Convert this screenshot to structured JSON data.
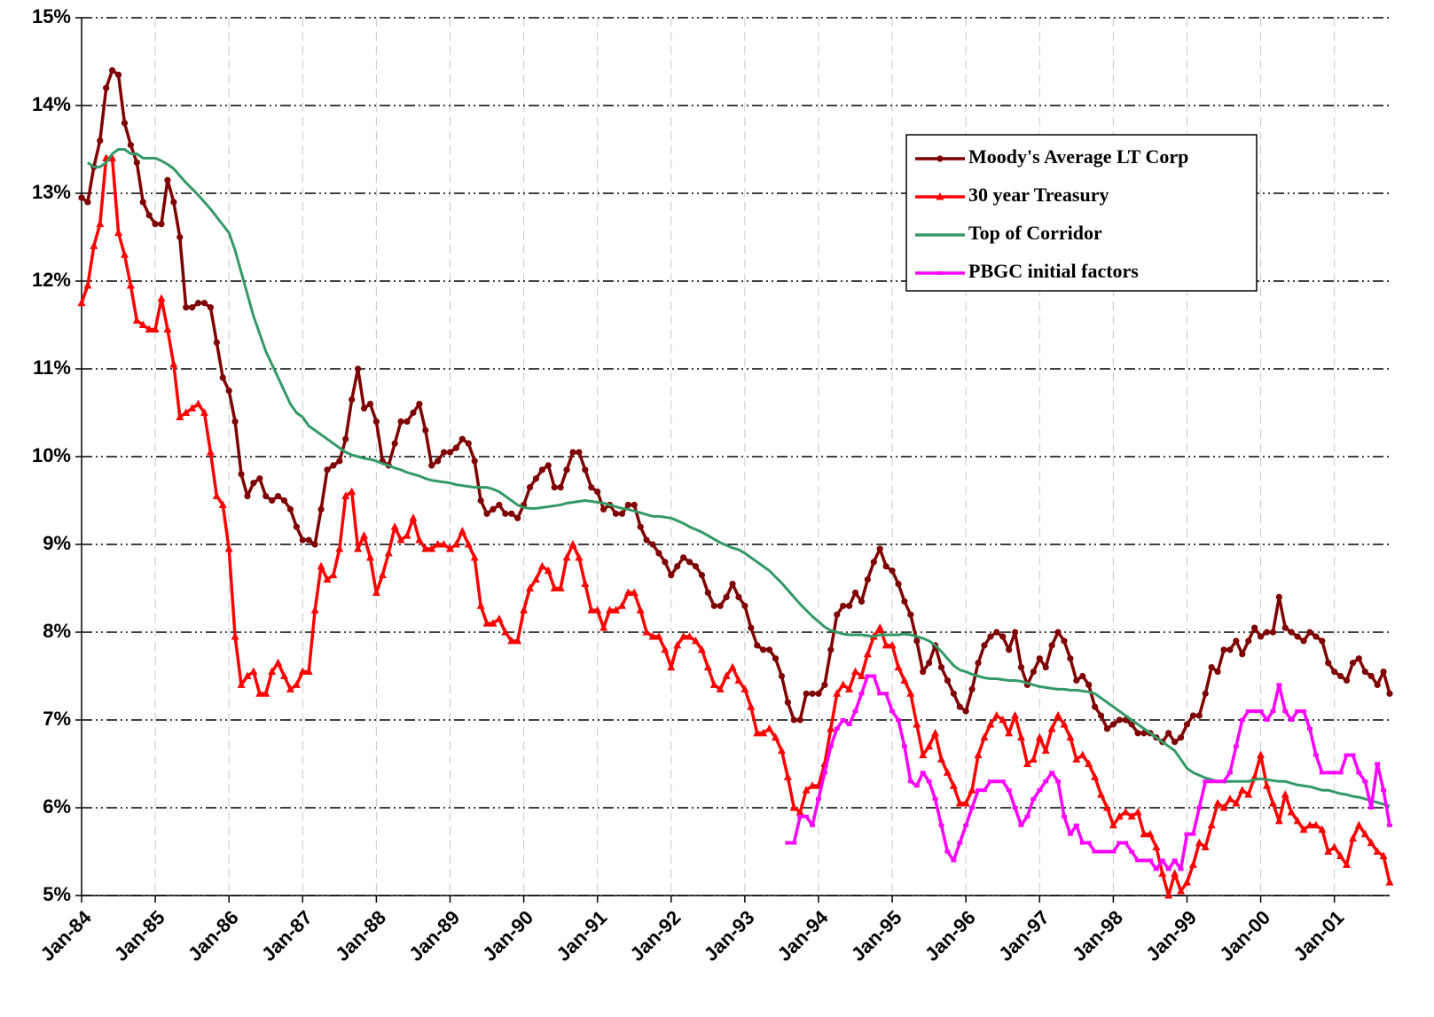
{
  "chart_data": {
    "type": "line",
    "categories": [
      "Jan-84",
      null,
      null,
      null,
      null,
      null,
      null,
      null,
      null,
      null,
      null,
      null,
      "Jan-85",
      null,
      null,
      null,
      null,
      null,
      null,
      null,
      null,
      null,
      null,
      null,
      "Jan-86",
      null,
      null,
      null,
      null,
      null,
      null,
      null,
      null,
      null,
      null,
      null,
      "Jan-87",
      null,
      null,
      null,
      null,
      null,
      null,
      null,
      null,
      null,
      null,
      null,
      "Jan-88",
      null,
      null,
      null,
      null,
      null,
      null,
      null,
      null,
      null,
      null,
      null,
      "Jan-89",
      null,
      null,
      null,
      null,
      null,
      null,
      null,
      null,
      null,
      null,
      null,
      "Jan-90",
      null,
      null,
      null,
      null,
      null,
      null,
      null,
      null,
      null,
      null,
      null,
      "Jan-91",
      null,
      null,
      null,
      null,
      null,
      null,
      null,
      null,
      null,
      null,
      null,
      "Jan-92",
      null,
      null,
      null,
      null,
      null,
      null,
      null,
      null,
      null,
      null,
      null,
      "Jan-93",
      null,
      null,
      null,
      null,
      null,
      null,
      null,
      null,
      null,
      null,
      null,
      "Jan-94",
      null,
      null,
      null,
      null,
      null,
      null,
      null,
      null,
      null,
      null,
      null,
      "Jan-95",
      null,
      null,
      null,
      null,
      null,
      null,
      null,
      null,
      null,
      null,
      null,
      "Jan-96",
      null,
      null,
      null,
      null,
      null,
      null,
      null,
      null,
      null,
      null,
      null,
      "Jan-97",
      null,
      null,
      null,
      null,
      null,
      null,
      null,
      null,
      null,
      null,
      null,
      "Jan-98",
      null,
      null,
      null,
      null,
      null,
      null,
      null,
      null,
      null,
      null,
      null,
      "Jan-99",
      null,
      null,
      null,
      null,
      null,
      null,
      null,
      null,
      null,
      null,
      null,
      "Jan-00",
      null,
      null,
      null,
      null,
      null,
      null,
      null,
      null,
      null,
      null,
      null,
      "Jan-01",
      null,
      null,
      null,
      null,
      null,
      null,
      null,
      null,
      null
    ],
    "series": [
      {
        "name": "Moody's Average LT Corp",
        "color": "#7f0000",
        "marker": "circle",
        "values": [
          12.95,
          12.9,
          13.3,
          13.6,
          14.2,
          14.4,
          14.35,
          13.8,
          13.55,
          13.35,
          12.9,
          12.75,
          12.65,
          12.65,
          13.15,
          12.9,
          12.5,
          11.7,
          11.7,
          11.75,
          11.75,
          11.7,
          11.3,
          10.9,
          10.75,
          10.4,
          9.8,
          9.55,
          9.7,
          9.75,
          9.55,
          9.5,
          9.55,
          9.5,
          9.4,
          9.2,
          9.05,
          9.05,
          9.0,
          9.4,
          9.85,
          9.9,
          9.95,
          10.2,
          10.65,
          11.0,
          10.55,
          10.6,
          10.4,
          9.95,
          9.9,
          10.15,
          10.4,
          10.4,
          10.5,
          10.6,
          10.3,
          9.9,
          9.95,
          10.05,
          10.05,
          10.1,
          10.2,
          10.15,
          9.95,
          9.5,
          9.35,
          9.4,
          9.45,
          9.35,
          9.35,
          9.3,
          9.45,
          9.65,
          9.75,
          9.85,
          9.9,
          9.65,
          9.65,
          9.85,
          10.05,
          10.05,
          9.85,
          9.65,
          9.6,
          9.4,
          9.45,
          9.35,
          9.35,
          9.45,
          9.45,
          9.2,
          9.05,
          9.0,
          8.9,
          8.8,
          8.65,
          8.75,
          8.85,
          8.8,
          8.75,
          8.65,
          8.45,
          8.3,
          8.3,
          8.4,
          8.55,
          8.4,
          8.3,
          8.05,
          7.85,
          7.8,
          7.8,
          7.7,
          7.5,
          7.2,
          7.0,
          7.0,
          7.3,
          7.3,
          7.3,
          7.4,
          7.8,
          8.2,
          8.3,
          8.3,
          8.45,
          8.35,
          8.6,
          8.8,
          8.95,
          8.75,
          8.7,
          8.55,
          8.35,
          8.2,
          7.9,
          7.55,
          7.65,
          7.85,
          7.6,
          7.45,
          7.3,
          7.15,
          7.1,
          7.35,
          7.65,
          7.85,
          7.95,
          8.0,
          7.95,
          7.8,
          8.0,
          7.6,
          7.4,
          7.55,
          7.7,
          7.6,
          7.85,
          8.0,
          7.9,
          7.7,
          7.45,
          7.5,
          7.4,
          7.15,
          7.05,
          6.9,
          6.95,
          7.0,
          7.0,
          6.95,
          6.85,
          6.85,
          6.85,
          6.8,
          6.75,
          6.85,
          6.75,
          6.8,
          6.95,
          7.05,
          7.05,
          7.3,
          7.6,
          7.55,
          7.8,
          7.8,
          7.9,
          7.75,
          7.9,
          8.05,
          7.95,
          8.0,
          8.0,
          8.4,
          8.05,
          8.0,
          7.95,
          7.9,
          8.0,
          7.95,
          7.9,
          7.65,
          7.55,
          7.5,
          7.45,
          7.65,
          7.7,
          7.55,
          7.5,
          7.4,
          7.55,
          7.3
        ]
      },
      {
        "name": "30 year Treasury",
        "color": "#ff0000",
        "marker": "triangle",
        "values": [
          11.75,
          11.95,
          12.4,
          12.65,
          13.4,
          13.4,
          12.55,
          12.3,
          11.95,
          11.55,
          11.5,
          11.45,
          11.45,
          11.8,
          11.45,
          11.05,
          10.45,
          10.5,
          10.55,
          10.6,
          10.5,
          10.05,
          9.55,
          9.45,
          8.95,
          7.95,
          7.4,
          7.5,
          7.55,
          7.3,
          7.3,
          7.55,
          7.65,
          7.5,
          7.35,
          7.4,
          7.55,
          7.55,
          8.25,
          8.75,
          8.6,
          8.65,
          8.95,
          9.55,
          9.6,
          8.95,
          9.1,
          8.85,
          8.45,
          8.65,
          8.9,
          9.2,
          9.05,
          9.1,
          9.3,
          9.05,
          8.95,
          8.95,
          9.0,
          9.0,
          8.95,
          9.0,
          9.15,
          9.0,
          8.85,
          8.3,
          8.1,
          8.1,
          8.15,
          8.0,
          7.9,
          7.9,
          8.25,
          8.5,
          8.6,
          8.75,
          8.7,
          8.5,
          8.5,
          8.85,
          9.0,
          8.85,
          8.55,
          8.25,
          8.25,
          8.05,
          8.25,
          8.25,
          8.3,
          8.45,
          8.45,
          8.25,
          8.0,
          7.95,
          7.95,
          7.8,
          7.6,
          7.85,
          7.95,
          7.95,
          7.9,
          7.8,
          7.6,
          7.4,
          7.35,
          7.5,
          7.6,
          7.45,
          7.35,
          7.15,
          6.85,
          6.85,
          6.9,
          6.8,
          6.65,
          6.35,
          6.0,
          5.95,
          6.2,
          6.25,
          6.25,
          6.5,
          6.9,
          7.3,
          7.4,
          7.35,
          7.55,
          7.5,
          7.75,
          7.95,
          8.05,
          7.85,
          7.85,
          7.6,
          7.45,
          7.3,
          6.95,
          6.6,
          6.7,
          6.85,
          6.55,
          6.4,
          6.25,
          6.05,
          6.05,
          6.2,
          6.6,
          6.8,
          6.95,
          7.05,
          7.0,
          6.85,
          7.05,
          6.8,
          6.5,
          6.55,
          6.8,
          6.65,
          6.9,
          7.05,
          6.95,
          6.8,
          6.55,
          6.6,
          6.5,
          6.35,
          6.15,
          6.0,
          5.8,
          5.9,
          5.95,
          5.9,
          5.95,
          5.7,
          5.7,
          5.55,
          5.25,
          5.0,
          5.25,
          5.05,
          5.15,
          5.35,
          5.6,
          5.55,
          5.8,
          6.05,
          6.0,
          6.1,
          6.05,
          6.2,
          6.15,
          6.35,
          6.6,
          6.25,
          6.05,
          5.85,
          6.15,
          5.95,
          5.85,
          5.75,
          5.8,
          5.8,
          5.75,
          5.5,
          5.55,
          5.45,
          5.35,
          5.65,
          5.8,
          5.7,
          5.6,
          5.5,
          5.45,
          5.15
        ]
      },
      {
        "name": "Top of Corridor",
        "color": "#339966",
        "marker": "none",
        "values": [
          null,
          13.35,
          13.3,
          13.3,
          13.35,
          13.45,
          13.5,
          13.5,
          13.45,
          13.45,
          13.4,
          13.4,
          13.4,
          13.37,
          13.33,
          13.28,
          13.2,
          13.12,
          13.05,
          12.98,
          12.9,
          12.82,
          12.73,
          12.64,
          12.55,
          12.35,
          12.1,
          11.85,
          11.6,
          11.4,
          11.2,
          11.05,
          10.9,
          10.75,
          10.6,
          10.5,
          10.45,
          10.35,
          10.3,
          10.25,
          10.2,
          10.15,
          10.1,
          10.05,
          10.02,
          10.0,
          9.98,
          9.97,
          9.95,
          9.92,
          9.9,
          9.87,
          9.85,
          9.82,
          9.8,
          9.78,
          9.75,
          9.73,
          9.72,
          9.71,
          9.7,
          9.68,
          9.67,
          9.66,
          9.65,
          9.65,
          9.65,
          9.63,
          9.6,
          9.55,
          9.5,
          9.45,
          9.42,
          9.41,
          9.41,
          9.42,
          9.43,
          9.44,
          9.45,
          9.47,
          9.48,
          9.49,
          9.5,
          9.49,
          9.48,
          9.47,
          9.45,
          9.43,
          9.41,
          9.4,
          9.38,
          9.36,
          9.34,
          9.32,
          9.32,
          9.31,
          9.3,
          9.27,
          9.24,
          9.2,
          9.17,
          9.14,
          9.1,
          9.06,
          9.02,
          8.99,
          8.96,
          8.94,
          8.9,
          8.85,
          8.8,
          8.75,
          8.7,
          8.63,
          8.56,
          8.48,
          8.4,
          8.32,
          8.25,
          8.18,
          8.12,
          8.06,
          8.02,
          8.0,
          7.98,
          7.97,
          7.97,
          7.97,
          7.96,
          7.95,
          7.97,
          7.97,
          7.97,
          7.97,
          7.98,
          7.97,
          7.95,
          7.93,
          7.9,
          7.85,
          7.78,
          7.7,
          7.62,
          7.57,
          7.55,
          7.52,
          7.5,
          7.48,
          7.47,
          7.47,
          7.46,
          7.45,
          7.45,
          7.44,
          7.42,
          7.4,
          7.38,
          7.37,
          7.36,
          7.35,
          7.35,
          7.34,
          7.34,
          7.33,
          7.32,
          7.3,
          7.25,
          7.2,
          7.15,
          7.1,
          7.05,
          7.0,
          6.95,
          6.9,
          6.85,
          6.8,
          6.75,
          6.7,
          6.65,
          6.55,
          6.45,
          6.4,
          6.37,
          6.34,
          6.32,
          6.3,
          6.3,
          6.3,
          6.3,
          6.3,
          6.3,
          6.32,
          6.33,
          6.32,
          6.31,
          6.3,
          6.3,
          6.28,
          6.26,
          6.25,
          6.24,
          6.22,
          6.2,
          6.2,
          6.18,
          6.16,
          6.15,
          6.13,
          6.12,
          6.1,
          6.08,
          6.06,
          6.04,
          6.02
        ]
      },
      {
        "name": "PBGC initial factors",
        "color": "#ff00ff",
        "marker": "square",
        "values": [
          null,
          null,
          null,
          null,
          null,
          null,
          null,
          null,
          null,
          null,
          null,
          null,
          null,
          null,
          null,
          null,
          null,
          null,
          null,
          null,
          null,
          null,
          null,
          null,
          null,
          null,
          null,
          null,
          null,
          null,
          null,
          null,
          null,
          null,
          null,
          null,
          null,
          null,
          null,
          null,
          null,
          null,
          null,
          null,
          null,
          null,
          null,
          null,
          null,
          null,
          null,
          null,
          null,
          null,
          null,
          null,
          null,
          null,
          null,
          null,
          null,
          null,
          null,
          null,
          null,
          null,
          null,
          null,
          null,
          null,
          null,
          null,
          null,
          null,
          null,
          null,
          null,
          null,
          null,
          null,
          null,
          null,
          null,
          null,
          null,
          null,
          null,
          null,
          null,
          null,
          null,
          null,
          null,
          null,
          null,
          null,
          null,
          null,
          null,
          null,
          null,
          null,
          null,
          null,
          null,
          null,
          null,
          null,
          null,
          null,
          null,
          null,
          null,
          null,
          null,
          5.6,
          5.6,
          5.9,
          5.9,
          5.8,
          6.1,
          6.4,
          6.7,
          6.9,
          7.0,
          6.95,
          7.1,
          7.3,
          7.5,
          7.5,
          7.3,
          7.3,
          7.1,
          7.0,
          6.7,
          6.3,
          6.25,
          6.4,
          6.3,
          6.1,
          5.8,
          5.5,
          5.4,
          5.6,
          5.8,
          6.0,
          6.2,
          6.2,
          6.3,
          6.3,
          6.3,
          6.2,
          6.0,
          5.8,
          5.9,
          6.1,
          6.2,
          6.3,
          6.4,
          6.3,
          5.9,
          5.7,
          5.8,
          5.6,
          5.6,
          5.5,
          5.5,
          5.5,
          5.5,
          5.6,
          5.6,
          5.5,
          5.4,
          5.4,
          5.4,
          5.3,
          5.4,
          5.3,
          5.4,
          5.3,
          5.7,
          5.7,
          6.0,
          6.3,
          6.3,
          6.3,
          6.3,
          6.4,
          6.7,
          7.0,
          7.1,
          7.1,
          7.1,
          7.0,
          7.1,
          7.4,
          7.1,
          7.0,
          7.1,
          7.1,
          6.9,
          6.6,
          6.4,
          6.4,
          6.4,
          6.4,
          6.6,
          6.6,
          6.4,
          6.3,
          6.0,
          6.5,
          6.2,
          5.8
        ]
      }
    ],
    "ylim": [
      5,
      15
    ],
    "yticks": [
      {
        "value": 5,
        "label": "5%"
      },
      {
        "value": 6,
        "label": "6%"
      },
      {
        "value": 7,
        "label": "7%"
      },
      {
        "value": 8,
        "label": "8%"
      },
      {
        "value": 9,
        "label": "9%"
      },
      {
        "value": 10,
        "label": "10%"
      },
      {
        "value": 11,
        "label": "11%"
      },
      {
        "value": 12,
        "label": "12%"
      },
      {
        "value": 13,
        "label": "13%"
      },
      {
        "value": 14,
        "label": "14%"
      },
      {
        "value": 15,
        "label": "15%"
      }
    ],
    "grid": true,
    "legend": "upper right"
  }
}
